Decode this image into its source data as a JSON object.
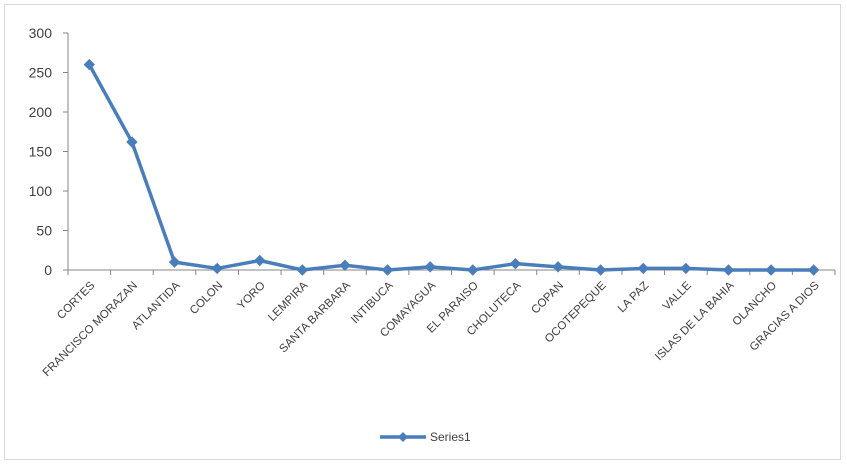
{
  "chart_data": {
    "type": "line",
    "categories": [
      "CORTES",
      "FRANCISCO MORAZAN",
      "ATLANTIDA",
      "COLON",
      "YORO",
      "LEMPIRA",
      "SANTA BARBARA",
      "INTIBUCA",
      "COMAYAGUA",
      "EL PARAISO",
      "CHOLUTECA",
      "COPAN",
      "OCOTEPEQUE",
      "LA PAZ",
      "VALLE",
      "ISLAS DE LA BAHIA",
      "OLANCHO",
      "GRACIAS A DIOS"
    ],
    "series": [
      {
        "name": "Series1",
        "values": [
          260,
          162,
          10,
          2,
          12,
          0,
          6,
          0,
          4,
          0,
          8,
          4,
          0,
          2,
          2,
          0,
          0,
          0
        ]
      }
    ],
    "yticks": [
      "0",
      "50",
      "100",
      "150",
      "200",
      "250",
      "300"
    ],
    "ylim": [
      0,
      300
    ],
    "grid": false,
    "legend_position": "bottom",
    "series_color": "#4a7ebb"
  }
}
